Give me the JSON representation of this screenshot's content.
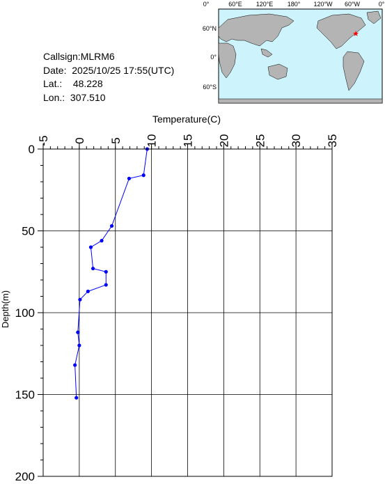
{
  "station": {
    "callsign_label": "Callsign:",
    "callsign": "MLRM6",
    "date_label": "Date:",
    "date": "2025/10/25 17:55(UTC)",
    "lat_label": "Lat.:",
    "lat": "48.228",
    "lon_label": "Lon.:",
    "lon": "307.510"
  },
  "map": {
    "top_labels": [
      "0°",
      "60°E",
      "120°E",
      "180°",
      "120°W",
      "60°W",
      "0°"
    ],
    "left_labels": [
      "60°N",
      "0°",
      "60°S"
    ],
    "ocean_color": "#cdf4fc",
    "land_color": "#b4b4b4",
    "marker_color": "#ff0000",
    "marker_icon": "star-icon"
  },
  "chart_data": {
    "type": "line",
    "xlabel": "Temperature(C)",
    "ylabel": "Depth(m)",
    "xlim": [
      -5,
      35
    ],
    "ylim": [
      0,
      200
    ],
    "x_ticks": [
      "-5",
      "0",
      "5",
      "10",
      "15",
      "20",
      "25",
      "30",
      "35"
    ],
    "y_ticks": [
      "0",
      "50",
      "100",
      "150",
      "200"
    ],
    "y_inverted": true,
    "grid": true,
    "series": [
      {
        "color": "#0000ff",
        "points": [
          {
            "temp": 9.4,
            "depth": 0
          },
          {
            "temp": 8.9,
            "depth": 16
          },
          {
            "temp": 6.9,
            "depth": 18
          },
          {
            "temp": 4.5,
            "depth": 47
          },
          {
            "temp": 3.1,
            "depth": 56
          },
          {
            "temp": 1.6,
            "depth": 60
          },
          {
            "temp": 1.9,
            "depth": 73
          },
          {
            "temp": 3.7,
            "depth": 75
          },
          {
            "temp": 3.7,
            "depth": 83
          },
          {
            "temp": 1.2,
            "depth": 87
          },
          {
            "temp": 0.1,
            "depth": 92
          },
          {
            "temp": -0.2,
            "depth": 112
          },
          {
            "temp": 0.0,
            "depth": 120
          },
          {
            "temp": -0.6,
            "depth": 132
          },
          {
            "temp": -0.4,
            "depth": 152
          }
        ]
      }
    ]
  }
}
